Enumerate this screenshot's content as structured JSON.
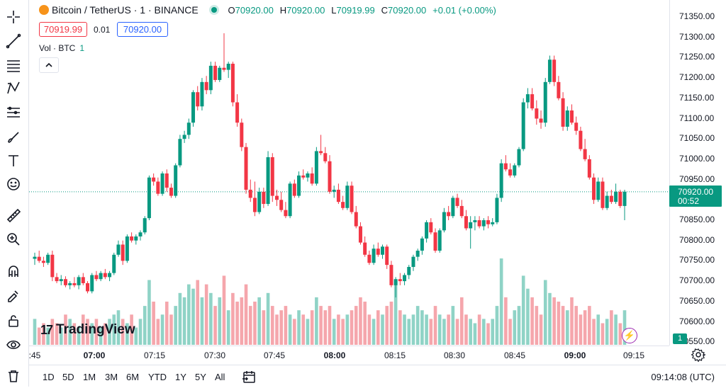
{
  "legend": {
    "symbol": "Bitcoin / TetherUS",
    "interval": "1",
    "exchange": "BINANCE",
    "open_label": "O",
    "open": "70920.00",
    "high_label": "H",
    "high": "70920.00",
    "low_label": "L",
    "low": "70919.99",
    "close_label": "C",
    "close": "70920.00",
    "change": "+0.01 (+0.00%)"
  },
  "bidask": {
    "bid": "70919.99",
    "spread": "0.01",
    "ask": "70920.00"
  },
  "volume_indicator": {
    "label": "Vol · BTC",
    "value": "1"
  },
  "price_axis": [
    "71350.00",
    "71300.00",
    "71250.00",
    "71200.00",
    "71150.00",
    "71100.00",
    "71050.00",
    "71000.00",
    "70950.00",
    "70850.00",
    "70800.00",
    "70750.00",
    "70700.00",
    "70650.00",
    "70600.00",
    "70550.00"
  ],
  "current_price": {
    "price": "70920.00",
    "countdown": "00:52"
  },
  "volume_tag": "1",
  "time_axis": [
    {
      "label": ":45",
      "bold": false
    },
    {
      "label": "07:00",
      "bold": true
    },
    {
      "label": "07:15",
      "bold": false
    },
    {
      "label": "07:30",
      "bold": false
    },
    {
      "label": "07:45",
      "bold": false
    },
    {
      "label": "08:00",
      "bold": true
    },
    {
      "label": "08:15",
      "bold": false
    },
    {
      "label": "08:30",
      "bold": false
    },
    {
      "label": "08:45",
      "bold": false
    },
    {
      "label": "09:00",
      "bold": true
    },
    {
      "label": "09:15",
      "bold": false
    }
  ],
  "ranges": [
    "1D",
    "5D",
    "1M",
    "3M",
    "6M",
    "YTD",
    "1Y",
    "5Y",
    "All"
  ],
  "clock": "09:14:08 (UTC)",
  "brand": "TradingView",
  "colors": {
    "up": "#089981",
    "down": "#f23645",
    "up_vol": "#8fd3c6",
    "down_vol": "#f5a6ac"
  },
  "icons": [
    "crosshair-icon",
    "trend-line-icon",
    "fib-icon",
    "pattern-icon",
    "multi-line-icon",
    "brush-icon",
    "text-icon",
    "emoji-icon",
    "ruler-icon",
    "zoom-in-icon",
    "magnet-icon",
    "lock-draw-icon",
    "lock-icon",
    "eye-icon",
    "trash-icon"
  ],
  "chart_data": {
    "type": "candlestick",
    "x_start": "06:45",
    "interval_minutes": 1,
    "ylim": [
      70550,
      71380
    ],
    "candles": [
      [
        70755,
        70770,
        70740,
        70760
      ],
      [
        70760,
        70775,
        70745,
        70750
      ],
      [
        70750,
        70760,
        70735,
        70745
      ],
      [
        70745,
        70770,
        70740,
        70765
      ],
      [
        70765,
        70775,
        70700,
        70710
      ],
      [
        70710,
        70720,
        70695,
        70700
      ],
      [
        70700,
        70715,
        70690,
        70705
      ],
      [
        70705,
        70712,
        70685,
        70690
      ],
      [
        70690,
        70700,
        70680,
        70695
      ],
      [
        70695,
        70710,
        70685,
        70690
      ],
      [
        70690,
        70715,
        70680,
        70710
      ],
      [
        70710,
        70720,
        70690,
        70695
      ],
      [
        70695,
        70700,
        70670,
        70675
      ],
      [
        70675,
        70720,
        70670,
        70715
      ],
      [
        70715,
        70725,
        70700,
        70705
      ],
      [
        70705,
        70725,
        70700,
        70720
      ],
      [
        70720,
        70730,
        70705,
        70710
      ],
      [
        70710,
        70725,
        70700,
        70720
      ],
      [
        70720,
        70770,
        70715,
        70765
      ],
      [
        70765,
        70800,
        70760,
        70790
      ],
      [
        70790,
        70800,
        70740,
        70750
      ],
      [
        70750,
        70815,
        70745,
        70810
      ],
      [
        70810,
        70820,
        70795,
        70800
      ],
      [
        70800,
        70815,
        70790,
        70810
      ],
      [
        70810,
        70825,
        70800,
        70820
      ],
      [
        70820,
        70860,
        70815,
        70855
      ],
      [
        70855,
        70960,
        70850,
        70955
      ],
      [
        70955,
        70965,
        70935,
        70945
      ],
      [
        70945,
        70955,
        70910,
        70915
      ],
      [
        70915,
        70970,
        70910,
        70965
      ],
      [
        70965,
        70975,
        70920,
        70930
      ],
      [
        70930,
        70940,
        70905,
        70910
      ],
      [
        70910,
        70990,
        70905,
        70985
      ],
      [
        70985,
        71060,
        70980,
        71050
      ],
      [
        71050,
        71070,
        71040,
        71060
      ],
      [
        71060,
        71100,
        71050,
        71090
      ],
      [
        71090,
        71170,
        71080,
        71165
      ],
      [
        71165,
        71180,
        71120,
        71130
      ],
      [
        71130,
        71200,
        71120,
        71190
      ],
      [
        71190,
        71205,
        71160,
        71170
      ],
      [
        71170,
        71240,
        71160,
        71230
      ],
      [
        71230,
        71240,
        71190,
        71195
      ],
      [
        71195,
        71230,
        71190,
        71225
      ],
      [
        71225,
        71310,
        71215,
        71220
      ],
      [
        71220,
        71240,
        71200,
        71235
      ],
      [
        71235,
        71240,
        71130,
        71140
      ],
      [
        71140,
        71160,
        71080,
        71090
      ],
      [
        71090,
        71100,
        71020,
        71030
      ],
      [
        71030,
        71040,
        70915,
        70925
      ],
      [
        70925,
        70950,
        70895,
        70905
      ],
      [
        70905,
        70945,
        70860,
        70870
      ],
      [
        70870,
        70930,
        70865,
        70920
      ],
      [
        70920,
        70930,
        70880,
        70890
      ],
      [
        70890,
        71020,
        70885,
        71005
      ],
      [
        71005,
        71015,
        70895,
        70910
      ],
      [
        70910,
        70925,
        70885,
        70900
      ],
      [
        70900,
        70920,
        70870,
        70875
      ],
      [
        70875,
        70895,
        70855,
        70860
      ],
      [
        70860,
        70945,
        70855,
        70940
      ],
      [
        70940,
        70950,
        70905,
        70910
      ],
      [
        70910,
        70970,
        70905,
        70960
      ],
      [
        70960,
        70975,
        70950,
        70955
      ],
      [
        70955,
        70970,
        70945,
        70965
      ],
      [
        70965,
        70980,
        70935,
        70940
      ],
      [
        70940,
        71030,
        70935,
        71020
      ],
      [
        71020,
        71060,
        71010,
        71015
      ],
      [
        71015,
        71030,
        70990,
        70995
      ],
      [
        70995,
        71010,
        70915,
        70920
      ],
      [
        70920,
        70935,
        70905,
        70925
      ],
      [
        70925,
        70940,
        70890,
        70895
      ],
      [
        70895,
        70910,
        70875,
        70880
      ],
      [
        70880,
        70945,
        70875,
        70935
      ],
      [
        70935,
        70945,
        70865,
        70870
      ],
      [
        70870,
        70885,
        70830,
        70835
      ],
      [
        70835,
        70845,
        70790,
        70795
      ],
      [
        70795,
        70810,
        70760,
        70765
      ],
      [
        70765,
        70775,
        70740,
        70745
      ],
      [
        70745,
        70790,
        70740,
        70780
      ],
      [
        70780,
        70795,
        70760,
        70765
      ],
      [
        70765,
        70790,
        70755,
        70785
      ],
      [
        70785,
        70790,
        70730,
        70740
      ],
      [
        70740,
        70750,
        70685,
        70690
      ],
      [
        70690,
        70710,
        70660,
        70705
      ],
      [
        70705,
        70720,
        70690,
        70700
      ],
      [
        70700,
        70720,
        70690,
        70715
      ],
      [
        70715,
        70740,
        70705,
        70735
      ],
      [
        70735,
        70765,
        70725,
        70760
      ],
      [
        70760,
        70780,
        70750,
        70775
      ],
      [
        70775,
        70810,
        70765,
        70805
      ],
      [
        70805,
        70850,
        70795,
        70845
      ],
      [
        70845,
        70855,
        70815,
        70820
      ],
      [
        70820,
        70830,
        70770,
        70775
      ],
      [
        70775,
        70830,
        70770,
        70825
      ],
      [
        70825,
        70880,
        70820,
        70870
      ],
      [
        70870,
        70885,
        70850,
        70860
      ],
      [
        70860,
        70910,
        70855,
        70905
      ],
      [
        70905,
        70915,
        70880,
        70885
      ],
      [
        70885,
        70900,
        70855,
        70860
      ],
      [
        70860,
        70875,
        70825,
        70830
      ],
      [
        70830,
        70860,
        70780,
        70845
      ],
      [
        70845,
        70860,
        70825,
        70850
      ],
      [
        70850,
        70860,
        70830,
        70835
      ],
      [
        70835,
        70855,
        70825,
        70850
      ],
      [
        70850,
        70860,
        70830,
        70840
      ],
      [
        70840,
        70855,
        70835,
        70845
      ],
      [
        70845,
        70915,
        70840,
        70905
      ],
      [
        70905,
        71000,
        70895,
        70990
      ],
      [
        70990,
        71010,
        70970,
        70975
      ],
      [
        70975,
        70990,
        70955,
        70960
      ],
      [
        70960,
        70990,
        70955,
        70985
      ],
      [
        70985,
        71030,
        70980,
        71025
      ],
      [
        71025,
        71150,
        71020,
        71140
      ],
      [
        71140,
        71175,
        71125,
        71160
      ],
      [
        71160,
        71175,
        71120,
        71125
      ],
      [
        71125,
        71145,
        71085,
        71100
      ],
      [
        71100,
        71120,
        71075,
        71090
      ],
      [
        71090,
        71200,
        71080,
        71190
      ],
      [
        71190,
        71255,
        71185,
        71245
      ],
      [
        71245,
        71255,
        71180,
        71190
      ],
      [
        71190,
        71205,
        71145,
        71150
      ],
      [
        71150,
        71165,
        71070,
        71080
      ],
      [
        71080,
        71130,
        71070,
        71120
      ],
      [
        71120,
        71135,
        71085,
        71090
      ],
      [
        71090,
        71105,
        71060,
        71070
      ],
      [
        71070,
        71080,
        71020,
        71025
      ],
      [
        71025,
        71050,
        70995,
        71000
      ],
      [
        71000,
        71010,
        70950,
        70955
      ],
      [
        70955,
        70965,
        70890,
        70900
      ],
      [
        70900,
        70955,
        70895,
        70945
      ],
      [
        70945,
        70955,
        70875,
        70880
      ],
      [
        70880,
        70920,
        70875,
        70910
      ],
      [
        70910,
        70925,
        70890,
        70895
      ],
      [
        70895,
        70940,
        70890,
        70920
      ],
      [
        70920,
        70925,
        70880,
        70885
      ],
      [
        70885,
        70925,
        70850,
        70920
      ]
    ],
    "volume_note": "relative heights",
    "volumes": [
      0.3,
      0.2,
      0.25,
      0.2,
      0.3,
      0.25,
      0.2,
      0.35,
      0.3,
      0.25,
      0.2,
      0.35,
      0.3,
      0.25,
      0.3,
      0.2,
      0.25,
      0.3,
      0.35,
      0.4,
      0.3,
      0.25,
      0.35,
      0.2,
      0.3,
      0.45,
      0.75,
      0.5,
      0.3,
      0.35,
      0.5,
      0.35,
      0.45,
      0.6,
      0.55,
      0.7,
      0.65,
      0.75,
      0.55,
      0.7,
      0.6,
      0.45,
      0.55,
      0.8,
      0.4,
      0.6,
      0.5,
      0.55,
      0.7,
      0.45,
      0.5,
      0.55,
      0.4,
      0.6,
      0.45,
      0.35,
      0.4,
      0.45,
      0.35,
      0.3,
      0.4,
      0.35,
      0.3,
      0.4,
      0.55,
      0.45,
      0.4,
      0.45,
      0.3,
      0.35,
      0.3,
      0.35,
      0.4,
      0.45,
      0.55,
      0.5,
      0.35,
      0.3,
      0.4,
      0.35,
      0.45,
      0.5,
      0.75,
      0.4,
      0.35,
      0.3,
      0.35,
      0.45,
      0.4,
      0.35,
      0.3,
      0.45,
      0.35,
      0.3,
      0.35,
      0.45,
      0.3,
      0.55,
      0.35,
      0.3,
      0.25,
      0.35,
      0.3,
      0.25,
      0.3,
      0.45,
      1.0,
      0.55,
      0.3,
      0.4,
      0.45,
      0.8,
      0.65,
      0.55,
      0.45,
      0.35,
      0.75,
      0.6,
      0.55,
      0.5,
      0.45,
      0.4,
      0.55,
      0.45,
      0.35,
      0.4,
      0.45,
      0.3,
      0.35,
      0.25,
      0.3,
      0.4,
      0.35,
      0.25,
      0.4
    ]
  }
}
